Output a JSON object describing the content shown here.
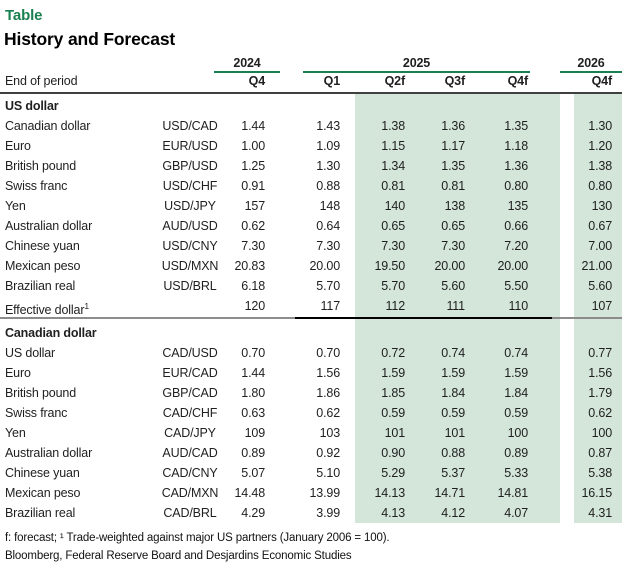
{
  "title": "Table",
  "subtitle": "History and Forecast",
  "header": {
    "row_label": "End of period",
    "year_groups": [
      {
        "label": "2024",
        "cols": [
          "Q4"
        ]
      },
      {
        "label": "2025",
        "cols": [
          "Q1",
          "Q2f",
          "Q3f",
          "Q4f"
        ]
      },
      {
        "label": "2026",
        "cols": [
          "Q4f"
        ]
      }
    ],
    "quarters": [
      "Q4",
      "Q1",
      "Q2f",
      "Q3f",
      "Q4f",
      "Q4f"
    ]
  },
  "sections": [
    {
      "name": "US dollar",
      "rows": [
        {
          "label": "Canadian dollar",
          "pair": "USD/CAD",
          "values": [
            "1.44",
            "1.43",
            "1.38",
            "1.36",
            "1.35",
            "1.30"
          ]
        },
        {
          "label": "Euro",
          "pair": "EUR/USD",
          "values": [
            "1.00",
            "1.09",
            "1.15",
            "1.17",
            "1.18",
            "1.20"
          ]
        },
        {
          "label": "British pound",
          "pair": "GBP/USD",
          "values": [
            "1.25",
            "1.30",
            "1.34",
            "1.35",
            "1.36",
            "1.38"
          ]
        },
        {
          "label": "Swiss franc",
          "pair": "USD/CHF",
          "values": [
            "0.91",
            "0.88",
            "0.81",
            "0.81",
            "0.80",
            "0.80"
          ]
        },
        {
          "label": "Yen",
          "pair": "USD/JPY",
          "values": [
            "157",
            "148",
            "140",
            "138",
            "135",
            "130"
          ]
        },
        {
          "label": "Australian dollar",
          "pair": "AUD/USD",
          "values": [
            "0.62",
            "0.64",
            "0.65",
            "0.65",
            "0.66",
            "0.67"
          ]
        },
        {
          "label": "Chinese yuan",
          "pair": "USD/CNY",
          "values": [
            "7.30",
            "7.30",
            "7.30",
            "7.30",
            "7.20",
            "7.00"
          ]
        },
        {
          "label": "Mexican peso",
          "pair": "USD/MXN",
          "values": [
            "20.83",
            "20.00",
            "19.50",
            "20.00",
            "20.00",
            "21.00"
          ]
        },
        {
          "label": "Brazilian real",
          "pair": "USD/BRL",
          "values": [
            "6.18",
            "5.70",
            "5.70",
            "5.60",
            "5.50",
            "5.60"
          ]
        },
        {
          "label": "Effective dollar",
          "sup": "1",
          "pair": "",
          "values": [
            "120",
            "117",
            "112",
            "111",
            "110",
            "107"
          ]
        }
      ]
    },
    {
      "name": "Canadian dollar",
      "rows": [
        {
          "label": "US dollar",
          "pair": "CAD/USD",
          "values": [
            "0.70",
            "0.70",
            "0.72",
            "0.74",
            "0.74",
            "0.77"
          ]
        },
        {
          "label": "Euro",
          "pair": "EUR/CAD",
          "values": [
            "1.44",
            "1.56",
            "1.59",
            "1.59",
            "1.59",
            "1.56"
          ]
        },
        {
          "label": "British pound",
          "pair": "GBP/CAD",
          "values": [
            "1.80",
            "1.86",
            "1.85",
            "1.84",
            "1.84",
            "1.79"
          ]
        },
        {
          "label": "Swiss franc",
          "pair": "CAD/CHF",
          "values": [
            "0.63",
            "0.62",
            "0.59",
            "0.59",
            "0.59",
            "0.62"
          ]
        },
        {
          "label": "Yen",
          "pair": "CAD/JPY",
          "values": [
            "109",
            "103",
            "101",
            "101",
            "100",
            "100"
          ]
        },
        {
          "label": "Australian dollar",
          "pair": "AUD/CAD",
          "values": [
            "0.89",
            "0.92",
            "0.90",
            "0.88",
            "0.89",
            "0.87"
          ]
        },
        {
          "label": "Chinese yuan",
          "pair": "CAD/CNY",
          "values": [
            "5.07",
            "5.10",
            "5.29",
            "5.37",
            "5.33",
            "5.38"
          ]
        },
        {
          "label": "Mexican peso",
          "pair": "CAD/MXN",
          "values": [
            "14.48",
            "13.99",
            "14.13",
            "14.71",
            "14.81",
            "16.15"
          ]
        },
        {
          "label": "Brazilian real",
          "pair": "CAD/BRL",
          "values": [
            "4.29",
            "3.99",
            "4.13",
            "4.12",
            "4.07",
            "4.31"
          ]
        }
      ]
    }
  ],
  "footnotes": [
    "f: forecast; ¹ Trade-weighted against major US partners (January 2006 = 100).",
    "Bloomberg, Federal Reserve Board and Desjardins Economic Studies"
  ],
  "colors": {
    "accent_green": "#1b8050",
    "forecast_shade_green": "#d3e6d9",
    "header_rule_gray": "#404040"
  }
}
